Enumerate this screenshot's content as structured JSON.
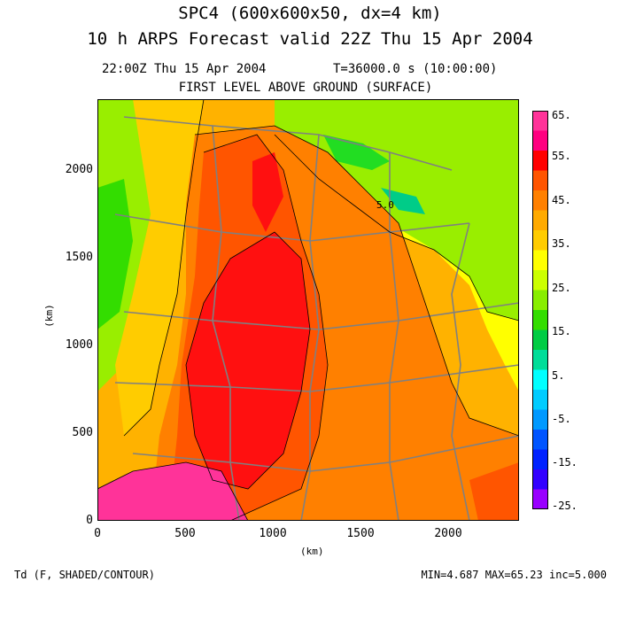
{
  "header": {
    "title_line1": "SPC4 (600x600x50, dx=4 km)",
    "title_line2": "10 h ARPS Forecast valid 22Z Thu 15 Apr 2004",
    "time_label": "22:00Z Thu 15 Apr 2004",
    "model_time": "T=36000.0 s (10:00:00)",
    "level_label": "FIRST LEVEL ABOVE GROUND (SURFACE)"
  },
  "chart_data": {
    "type": "heatmap",
    "xlabel": "(km)",
    "ylabel": "(km)",
    "xlim": [
      0,
      2400
    ],
    "ylim": [
      0,
      2400
    ],
    "xticks": [
      "0",
      "500",
      "1000",
      "1500",
      "2000"
    ],
    "yticks": [
      "0",
      "500",
      "1000",
      "1500",
      "2000"
    ],
    "contour_annotation": "5.0",
    "colorbar": {
      "labels": [
        "65.",
        "55.",
        "45.",
        "35.",
        "25.",
        "15.",
        "5.",
        "-5.",
        "-15.",
        "-25."
      ],
      "colors": [
        "#ff3399",
        "#ff0080",
        "#ff0000",
        "#ff5500",
        "#ff8000",
        "#ffaa00",
        "#ffcc00",
        "#ffff00",
        "#ccff00",
        "#88ee00",
        "#33dd00",
        "#00cc44",
        "#00dd99",
        "#00ffff",
        "#00ccff",
        "#0099ff",
        "#0055ff",
        "#0022ff",
        "#3300ff",
        "#9900ff"
      ]
    },
    "field_name": "Td (F, SHADED/CONTOUR)",
    "min": "MIN=4.687",
    "max": "MAX=65.23",
    "inc": "inc=5.000"
  }
}
